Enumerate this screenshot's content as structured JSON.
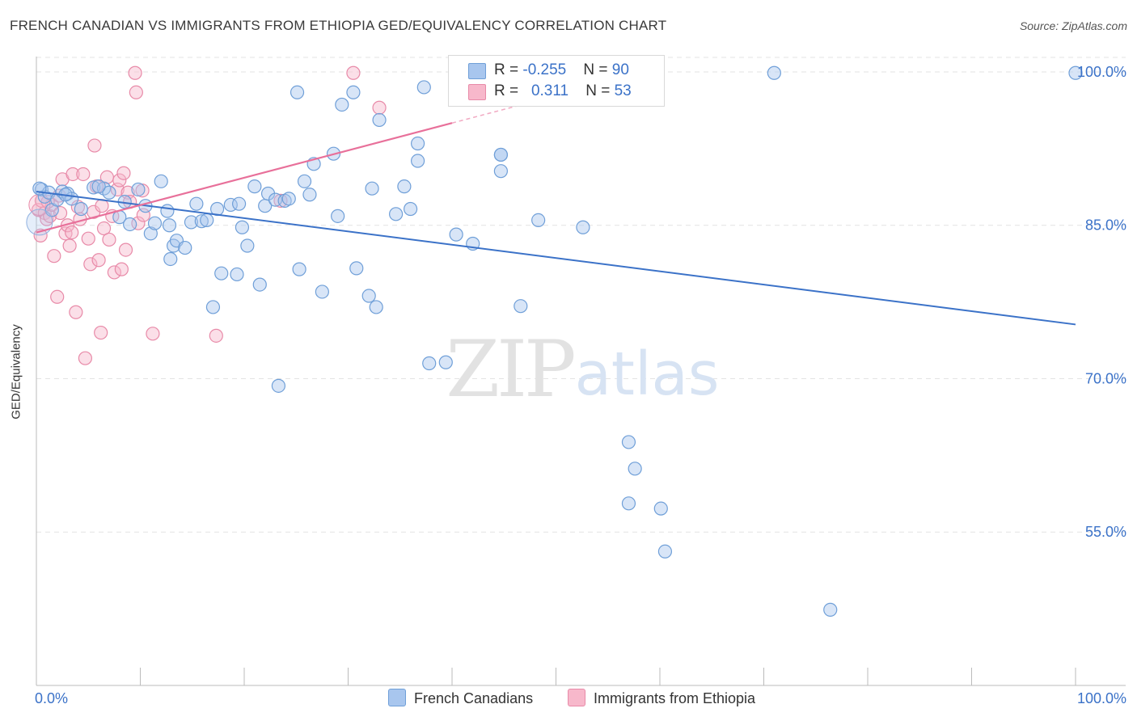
{
  "title": "FRENCH CANADIAN VS IMMIGRANTS FROM ETHIOPIA GED/EQUIVALENCY CORRELATION CHART",
  "source": "Source: ZipAtlas.com",
  "watermark": {
    "zip": "ZIP",
    "atlas": "atlas"
  },
  "legend": {
    "rows": [
      {
        "r_label": "R = ",
        "r_value": "-0.255",
        "n_label": "N = ",
        "n_value": "90",
        "color": "#a8c6ee",
        "border": "#6f9fd8"
      },
      {
        "r_label": "R = ",
        "r_value": "0.311",
        "n_label": "N = ",
        "n_value": "53",
        "color": "#f7b8cb",
        "border": "#e88aa8"
      }
    ]
  },
  "bottom_legend": {
    "blue": "French Canadians",
    "pink": "Immigrants from Ethiopia"
  },
  "colors": {
    "blue": "#3b72c8",
    "blue_fill": "#a8c6ee",
    "pink": "#e8709a",
    "pink_fill": "#f7b8cb",
    "grid": "#e3e3e3",
    "tick_label": "#3b72c8"
  },
  "chart_data": {
    "type": "scatter",
    "title": "FRENCH CANADIAN VS IMMIGRANTS FROM ETHIOPIA GED/EQUIVALENCY CORRELATION CHART",
    "xlabel": "",
    "ylabel": "GED/Equivalency",
    "xlim": [
      0,
      100
    ],
    "ylim": [
      40,
      101.5
    ],
    "x_tick_labels": [
      "0.0%",
      "100.0%"
    ],
    "y_ticks": [
      55,
      70,
      85,
      100
    ],
    "y_tick_labels": [
      "55.0%",
      "70.0%",
      "85.0%",
      "100.0%"
    ],
    "grid": true,
    "legend_placement": "top-center",
    "series": [
      {
        "name": "French Canadians",
        "color": "#3b72c8",
        "trend": {
          "x": [
            0,
            100
          ],
          "y": [
            88.3,
            75.3
          ]
        },
        "points": [
          [
            0.5,
            88.5
          ],
          [
            0.8,
            87.8
          ],
          [
            1.2,
            88.2
          ],
          [
            1.5,
            86.5
          ],
          [
            2.0,
            87.5
          ],
          [
            2.5,
            88.3
          ],
          [
            3.0,
            88.1
          ],
          [
            3.4,
            87.6
          ],
          [
            4.3,
            86.6
          ],
          [
            5.5,
            88.7
          ],
          [
            6.5,
            88.6
          ],
          [
            7.0,
            88.2
          ],
          [
            8.0,
            85.8
          ],
          [
            8.5,
            87.3
          ],
          [
            9.0,
            85.1
          ],
          [
            9.8,
            88.5
          ],
          [
            10.5,
            86.9
          ],
          [
            11.0,
            84.2
          ],
          [
            11.4,
            85.2
          ],
          [
            12.0,
            89.3
          ],
          [
            12.6,
            86.4
          ],
          [
            12.9,
            81.7
          ],
          [
            13.2,
            83.0
          ],
          [
            13.5,
            83.5
          ],
          [
            14.3,
            82.8
          ],
          [
            14.9,
            85.3
          ],
          [
            15.4,
            87.1
          ],
          [
            15.9,
            85.4
          ],
          [
            16.4,
            85.5
          ],
          [
            17.0,
            77.0
          ],
          [
            17.4,
            86.6
          ],
          [
            17.8,
            80.3
          ],
          [
            18.7,
            87.0
          ],
          [
            19.3,
            80.2
          ],
          [
            19.5,
            87.1
          ],
          [
            19.8,
            84.8
          ],
          [
            20.3,
            83.0
          ],
          [
            21.0,
            88.8
          ],
          [
            21.5,
            79.2
          ],
          [
            22.0,
            86.9
          ],
          [
            22.3,
            88.1
          ],
          [
            23.0,
            87.5
          ],
          [
            23.3,
            69.3
          ],
          [
            23.9,
            87.4
          ],
          [
            24.3,
            87.6
          ],
          [
            25.1,
            98.0
          ],
          [
            25.3,
            80.7
          ],
          [
            25.8,
            89.3
          ],
          [
            26.3,
            88.0
          ],
          [
            26.7,
            91.0
          ],
          [
            27.5,
            78.5
          ],
          [
            28.6,
            92.0
          ],
          [
            29.0,
            85.9
          ],
          [
            29.4,
            96.8
          ],
          [
            30.5,
            98.0
          ],
          [
            30.8,
            80.8
          ],
          [
            32.0,
            78.1
          ],
          [
            32.3,
            88.6
          ],
          [
            32.7,
            77.0
          ],
          [
            33.0,
            95.3
          ],
          [
            34.6,
            86.1
          ],
          [
            35.4,
            88.8
          ],
          [
            36.0,
            86.6
          ],
          [
            36.7,
            91.3
          ],
          [
            36.7,
            93.0
          ],
          [
            37.3,
            98.5
          ],
          [
            37.8,
            71.5
          ],
          [
            39.4,
            71.6
          ],
          [
            40.4,
            84.1
          ],
          [
            42.0,
            83.2
          ],
          [
            44.7,
            91.9
          ],
          [
            44.7,
            90.3
          ],
          [
            46.6,
            77.1
          ],
          [
            48.0,
            99.9
          ],
          [
            48.3,
            85.5
          ],
          [
            50.5,
            99.9
          ],
          [
            52.6,
            84.8
          ],
          [
            57.0,
            63.8
          ],
          [
            57.0,
            57.8
          ],
          [
            57.6,
            61.2
          ],
          [
            60.1,
            57.3
          ],
          [
            60.5,
            53.1
          ],
          [
            71.0,
            99.9
          ],
          [
            76.4,
            47.4
          ],
          [
            100.0,
            99.9
          ],
          [
            0.3,
            88.6
          ],
          [
            2.8,
            88.0
          ],
          [
            6.0,
            88.8
          ],
          [
            12.8,
            85.0
          ],
          [
            44.7,
            91.9
          ]
        ]
      },
      {
        "name": "Immigrants from Ethiopia",
        "color": "#e8709a",
        "trend": {
          "x": [
            0,
            40
          ],
          "y": [
            84.3,
            95.0
          ]
        },
        "points": [
          [
            0.2,
            86.5
          ],
          [
            0.5,
            87.4
          ],
          [
            0.8,
            86.2
          ],
          [
            1.0,
            85.6
          ],
          [
            1.3,
            85.9
          ],
          [
            1.5,
            87.0
          ],
          [
            1.7,
            82.0
          ],
          [
            2.0,
            78.0
          ],
          [
            2.2,
            87.9
          ],
          [
            2.5,
            89.5
          ],
          [
            2.8,
            84.2
          ],
          [
            3.0,
            85.0
          ],
          [
            3.2,
            83.0
          ],
          [
            3.5,
            90.0
          ],
          [
            3.8,
            76.5
          ],
          [
            4.0,
            86.8
          ],
          [
            4.2,
            85.6
          ],
          [
            4.5,
            90.0
          ],
          [
            4.7,
            72.0
          ],
          [
            5.0,
            83.7
          ],
          [
            5.2,
            81.2
          ],
          [
            5.5,
            86.3
          ],
          [
            5.8,
            88.8
          ],
          [
            5.6,
            92.8
          ],
          [
            6.0,
            81.6
          ],
          [
            6.2,
            74.5
          ],
          [
            6.5,
            84.7
          ],
          [
            6.8,
            89.7
          ],
          [
            7.0,
            83.6
          ],
          [
            7.3,
            85.9
          ],
          [
            7.5,
            80.4
          ],
          [
            7.8,
            88.5
          ],
          [
            8.0,
            89.4
          ],
          [
            8.2,
            80.7
          ],
          [
            8.4,
            90.1
          ],
          [
            8.6,
            82.6
          ],
          [
            8.8,
            88.2
          ],
          [
            9.0,
            87.3
          ],
          [
            9.5,
            99.9
          ],
          [
            9.6,
            98.0
          ],
          [
            9.8,
            85.2
          ],
          [
            10.2,
            88.4
          ],
          [
            10.3,
            86.0
          ],
          [
            11.2,
            74.4
          ],
          [
            17.3,
            74.2
          ],
          [
            23.5,
            87.4
          ],
          [
            30.5,
            99.9
          ],
          [
            33.0,
            96.5
          ],
          [
            0.4,
            84.0
          ],
          [
            2.3,
            86.2
          ],
          [
            3.4,
            84.3
          ],
          [
            6.3,
            86.9
          ],
          [
            1.1,
            87.3
          ]
        ]
      }
    ]
  }
}
